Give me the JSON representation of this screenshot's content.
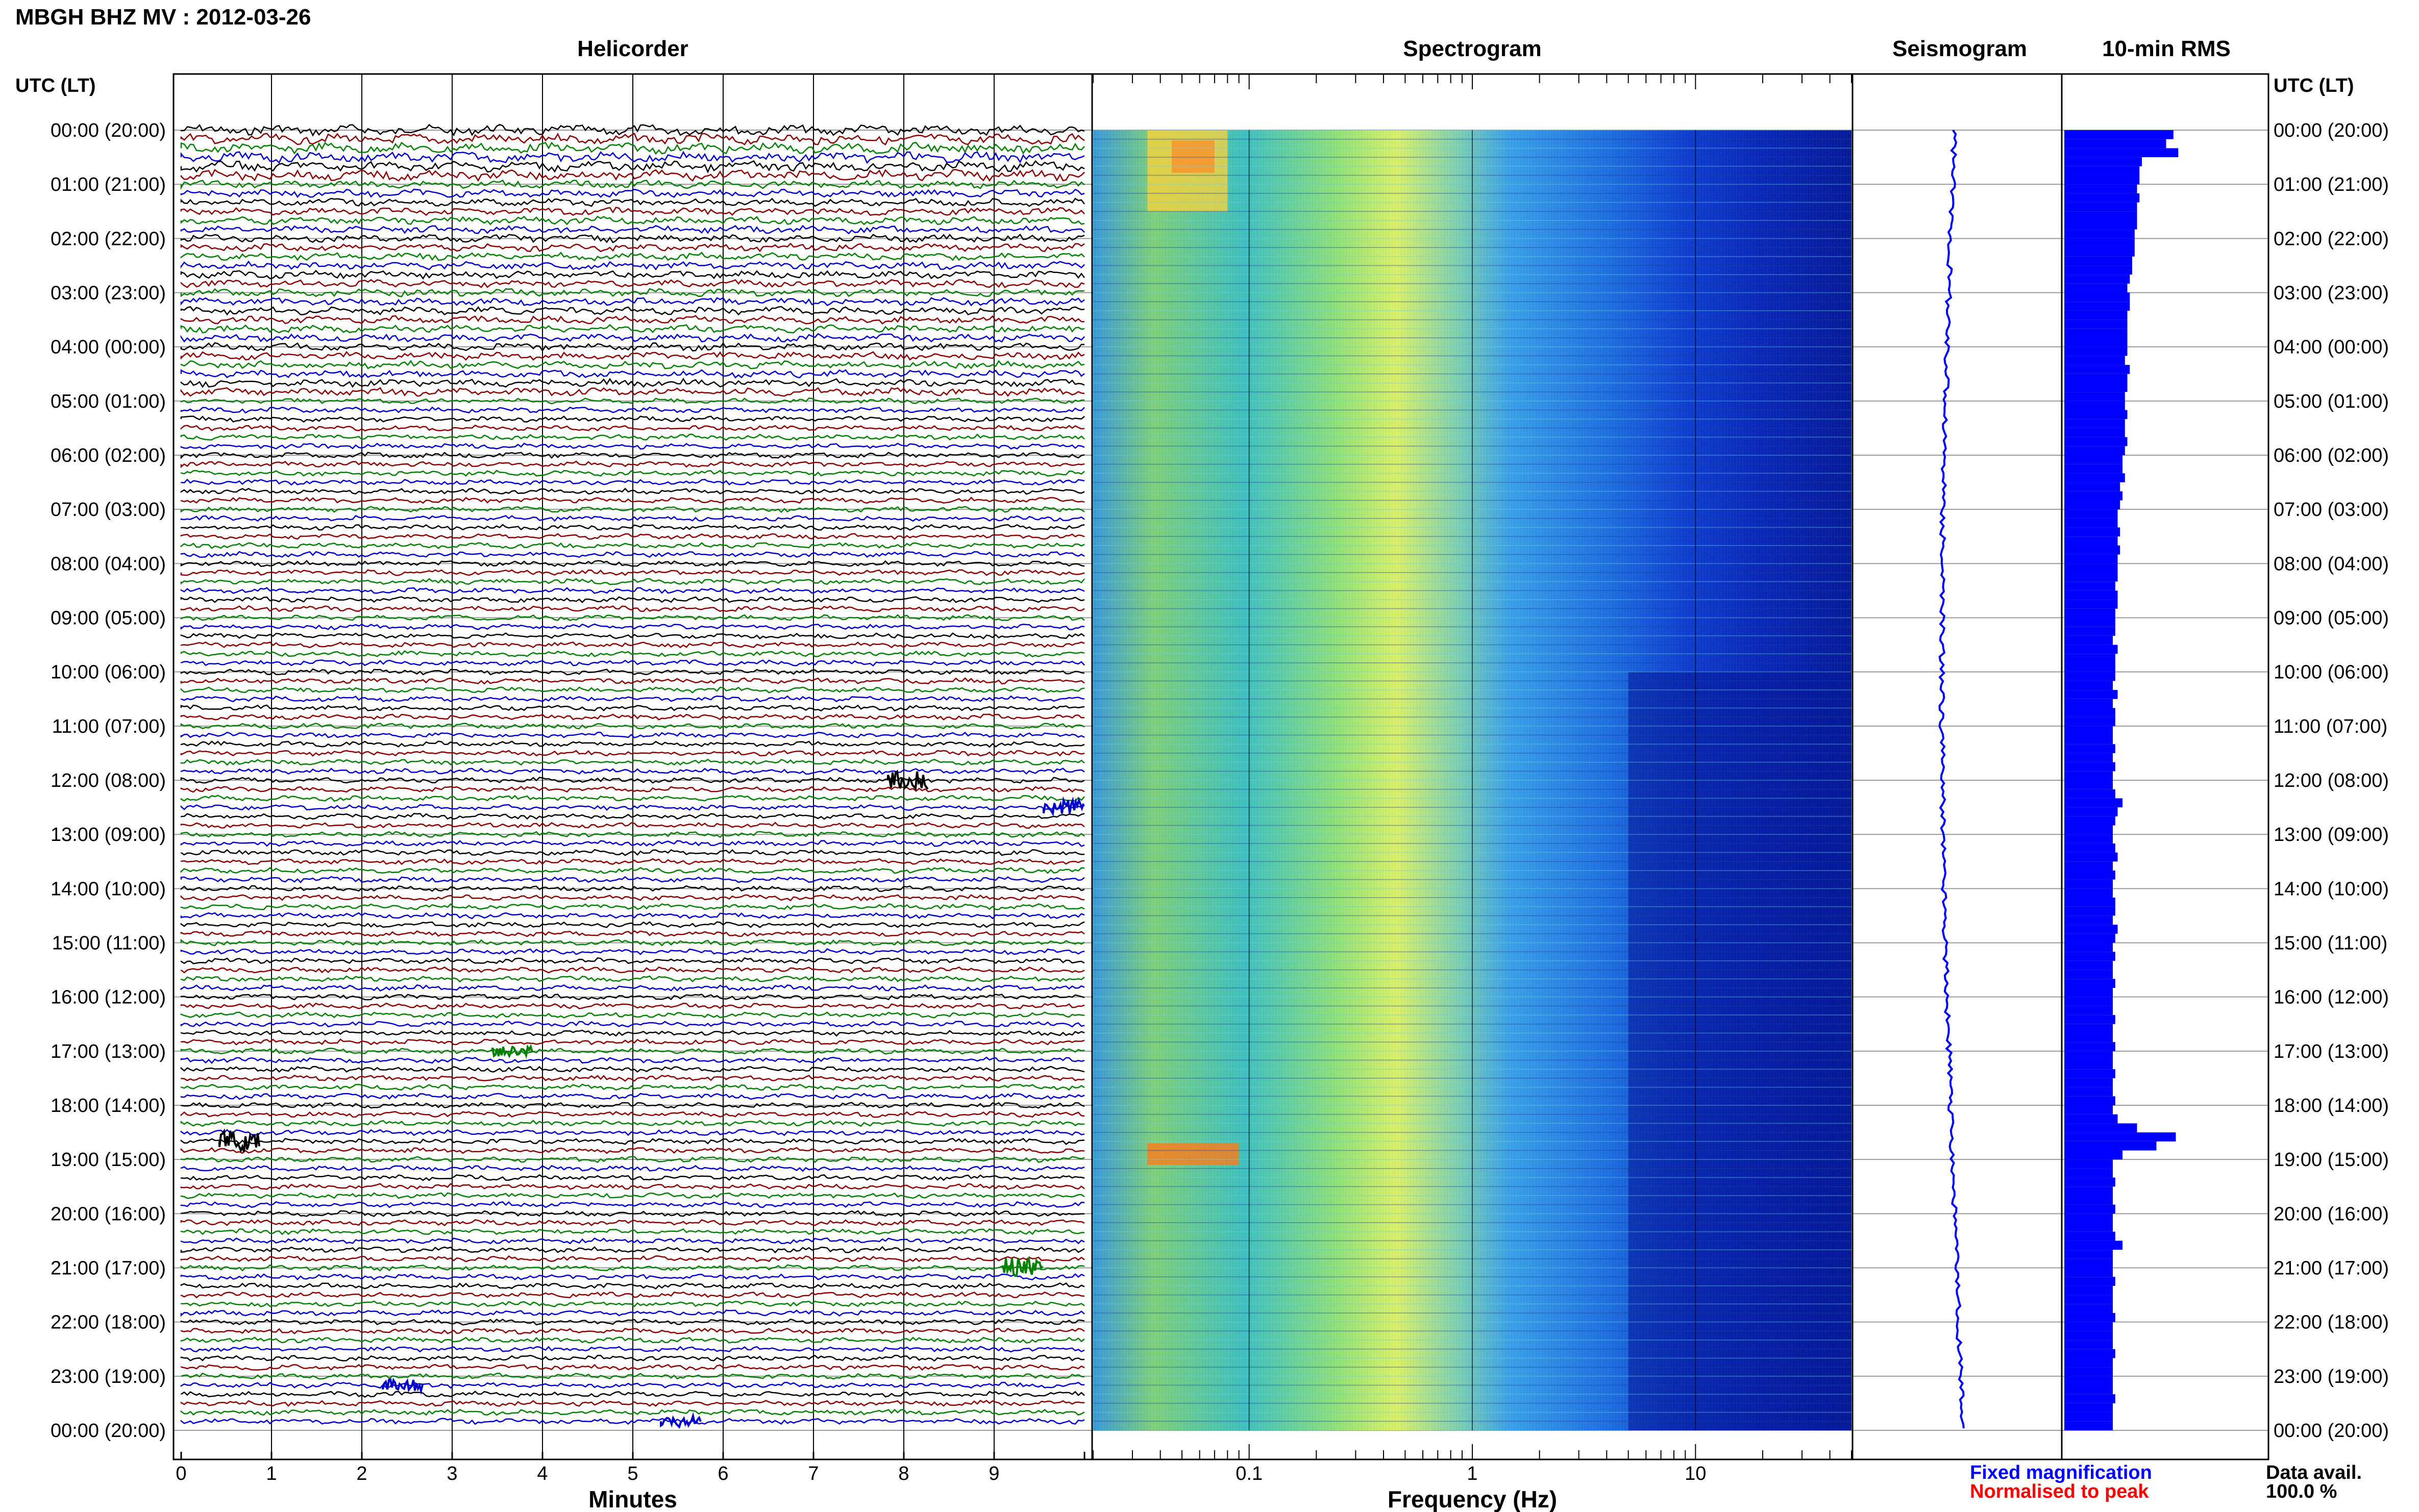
{
  "header": {
    "station_title": "MBGH BHZ MV : 2012-03-26",
    "tz_label_left": "UTC (LT)",
    "tz_label_right": "UTC (LT)"
  },
  "panels": {
    "helicorder": "Helicorder",
    "spectrogram": "Spectrogram",
    "seismogram": "Seismogram",
    "rms": "10-min RMS"
  },
  "axes": {
    "helicorder_xlabel": "Minutes",
    "spectrogram_xlabel": "Frequency (Hz)",
    "helicorder_ticks": [
      "0",
      "1",
      "2",
      "3",
      "4",
      "5",
      "6",
      "7",
      "8",
      "9"
    ],
    "spectrogram_ticks": [
      "0.1",
      "1",
      "10"
    ]
  },
  "time_labels": [
    "00:00 (20:00)",
    "01:00 (21:00)",
    "02:00 (22:00)",
    "03:00 (23:00)",
    "04:00 (00:00)",
    "05:00 (01:00)",
    "06:00 (02:00)",
    "07:00 (03:00)",
    "08:00 (04:00)",
    "09:00 (05:00)",
    "10:00 (06:00)",
    "11:00 (07:00)",
    "12:00 (08:00)",
    "13:00 (09:00)",
    "14:00 (10:00)",
    "15:00 (11:00)",
    "16:00 (12:00)",
    "17:00 (13:00)",
    "18:00 (14:00)",
    "19:00 (15:00)",
    "20:00 (16:00)",
    "21:00 (17:00)",
    "22:00 (18:00)",
    "23:00 (19:00)",
    "00:00 (20:00)"
  ],
  "footer": {
    "legend_fixed": "Fixed magnification",
    "legend_normalised": "Normalised to peak",
    "data_avail_label": "Data avail.",
    "data_avail_value": "100.0 %"
  },
  "colors": {
    "trace_cycle": [
      "#000000",
      "#8b0000",
      "#008000",
      "#0000cc"
    ],
    "legend_fixed": "#0000ff",
    "legend_normalised": "#ff0000",
    "rms_bar": "#0000ff",
    "seismogram": "#0000ff"
  },
  "chart_data": {
    "type": "heatmap",
    "title": "MBGH BHZ MV : 2012-03-26",
    "helicorder": {
      "xlabel": "Minutes",
      "xlim": [
        0,
        10
      ],
      "traces_per_hour": 6,
      "hours": 24
    },
    "spectrogram": {
      "xlabel": "Frequency (Hz)",
      "xscale": "log",
      "xlim": [
        0.02,
        50
      ]
    },
    "rms_10min": [
      2.25,
      2.1,
      2.35,
      1.6,
      1.55,
      1.55,
      1.5,
      1.55,
      1.5,
      1.5,
      1.5,
      1.45,
      1.45,
      1.45,
      1.4,
      1.4,
      1.35,
      1.3,
      1.35,
      1.35,
      1.3,
      1.3,
      1.3,
      1.3,
      1.3,
      1.25,
      1.35,
      1.3,
      1.3,
      1.25,
      1.25,
      1.3,
      1.25,
      1.25,
      1.3,
      1.25,
      1.2,
      1.2,
      1.25,
      1.15,
      1.2,
      1.15,
      1.1,
      1.1,
      1.15,
      1.1,
      1.15,
      1.1,
      1.1,
      1.1,
      1.05,
      1.1,
      1.1,
      1.05,
      1.05,
      1.05,
      1.0,
      1.1,
      1.05,
      1.05,
      1.05,
      1.0,
      1.1,
      1.0,
      1.05,
      1.05,
      1.0,
      1.0,
      1.05,
      1.0,
      1.05,
      1.0,
      1.0,
      1.05,
      1.2,
      1.1,
      1.05,
      1.0,
      1.0,
      1.05,
      1.1,
      1.0,
      1.05,
      1.0,
      1.0,
      1.05,
      1.05,
      1.0,
      1.1,
      1.05,
      1.0,
      1.05,
      1.0,
      1.0,
      1.05,
      1.0,
      1.0,
      1.0,
      1.05,
      1.0,
      1.0,
      1.05,
      1.0,
      1.0,
      1.05,
      1.0,
      1.0,
      1.05,
      1.0,
      1.1,
      1.5,
      2.3,
      1.9,
      1.2,
      1.0,
      1.0,
      1.05,
      1.0,
      1.0,
      1.05,
      1.0,
      1.0,
      1.05,
      1.2,
      1.0,
      1.0,
      1.0,
      1.05,
      1.0,
      1.0,
      1.0,
      1.05,
      1.0,
      1.0,
      1.0,
      1.05,
      1.0,
      1.0,
      1.0,
      1.0,
      1.05,
      1.0,
      1.0,
      1.0
    ]
  }
}
